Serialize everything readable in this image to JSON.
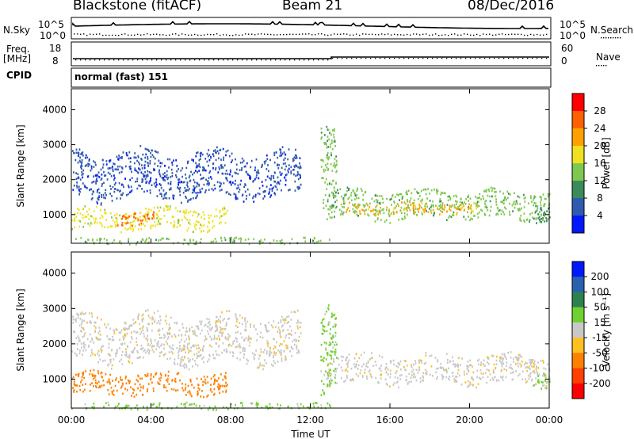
{
  "header": {
    "title": "Blackstone (fitACF)",
    "beam": "Beam 21",
    "date": "08/Dec/2016"
  },
  "summary_panels": {
    "nsky_label": "N.Sky",
    "nsearch_label": "N.Search",
    "nsky_ticks": [
      "10^5",
      "10^0"
    ],
    "nsearch_ticks": [
      "10^5",
      "10^0"
    ],
    "freq_label": "Freq.",
    "freq_unit": "[MHz]",
    "freq_ticks": [
      "18",
      "8"
    ],
    "nave_label": "Nave",
    "nave_ticks": [
      "60",
      "0"
    ],
    "cpid_label": "CPID",
    "cpid_value": "normal (fast) 151"
  },
  "chart_data": [
    {
      "type": "heatmap",
      "name": "power",
      "xlabel": "Time UT",
      "ylabel": "Slant Range [km]",
      "xlim": [
        0,
        24
      ],
      "ylim": [
        180,
        4600
      ],
      "xticks": [
        "00:00",
        "04:00",
        "08:00",
        "12:00",
        "16:00",
        "20:00",
        "00:00"
      ],
      "yticks": [
        1000,
        2000,
        3000,
        4000
      ],
      "colorbar": {
        "label": "Power [dB]",
        "ticks": [
          "28",
          "24",
          "20",
          "16",
          "12",
          "8",
          "4"
        ],
        "colors": [
          "#ff0000",
          "#ff6000",
          "#ffa000",
          "#f0e020",
          "#7fc850",
          "#3a8a5a",
          "#305ab0",
          "#0018ff"
        ]
      },
      "bands": [
        {
          "x": [
            0.0,
            7.8
          ],
          "r": [
            600,
            1200
          ],
          "level": 16
        },
        {
          "x": [
            2.2,
            4.2
          ],
          "r": [
            700,
            1050
          ],
          "level": 26
        },
        {
          "x": [
            0.0,
            11.5
          ],
          "r": [
            1500,
            2800
          ],
          "level": 6
        },
        {
          "x": [
            12.8,
            24.0
          ],
          "r": [
            900,
            1700
          ],
          "level": 14
        },
        {
          "x": [
            13.5,
            20.5
          ],
          "r": [
            1050,
            1350
          ],
          "level": 22
        },
        {
          "x": [
            12.5,
            13.3
          ],
          "r": [
            800,
            3200
          ],
          "level": 12
        },
        {
          "x": [
            23.2,
            24.0
          ],
          "r": [
            700,
            1200
          ],
          "level": 8
        },
        {
          "x": [
            0.0,
            13.0
          ],
          "r": [
            180,
            350
          ],
          "level": 12
        }
      ]
    },
    {
      "type": "heatmap",
      "name": "velocity",
      "xlabel": "Time UT",
      "ylabel": "Slant Range [km]",
      "xlim": [
        0,
        24
      ],
      "ylim": [
        180,
        4600
      ],
      "xticks": [
        "00:00",
        "04:00",
        "08:00",
        "12:00",
        "16:00",
        "20:00",
        "00:00"
      ],
      "yticks": [
        1000,
        2000,
        3000,
        4000
      ],
      "colorbar": {
        "label": "Velocity [m s⁻¹]",
        "ticks": [
          "200",
          "100",
          "50",
          "15",
          "-15",
          "-50",
          "-100",
          "-200"
        ],
        "colors": [
          "#0018ff",
          "#2a60b0",
          "#2d8050",
          "#70d030",
          "#c8c8c8",
          "#ffc020",
          "#ff8000",
          "#ff4000",
          "#ff0000"
        ]
      },
      "bands": [
        {
          "x": [
            0.0,
            7.8
          ],
          "r": [
            600,
            1200
          ],
          "level": -60
        },
        {
          "x": [
            0.0,
            11.5
          ],
          "r": [
            1500,
            2800
          ],
          "level": 0
        },
        {
          "x": [
            12.8,
            24.0
          ],
          "r": [
            900,
            1700
          ],
          "level": 0
        },
        {
          "x": [
            12.5,
            13.3
          ],
          "r": [
            800,
            3200
          ],
          "level": 40
        },
        {
          "x": [
            23.2,
            24.0
          ],
          "r": [
            700,
            1200
          ],
          "level": 30
        },
        {
          "x": [
            0.0,
            13.0
          ],
          "r": [
            180,
            350
          ],
          "level": 20
        }
      ]
    }
  ]
}
